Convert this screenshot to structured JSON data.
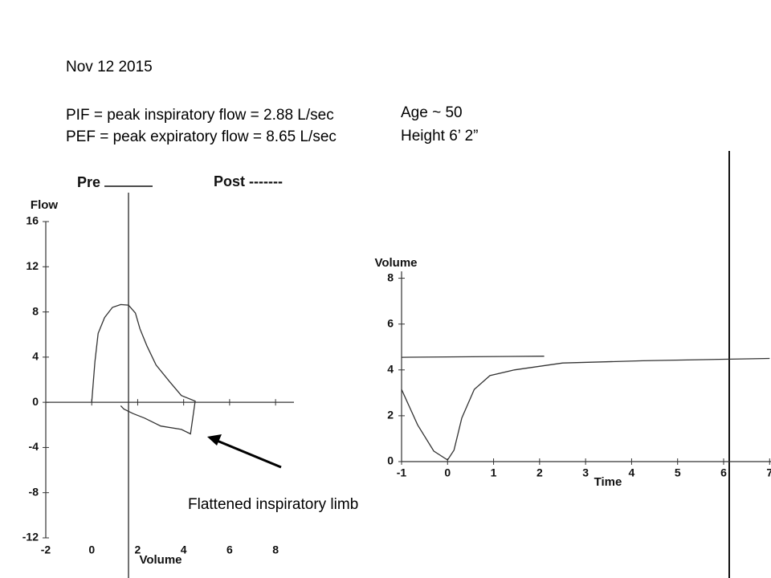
{
  "slide": {
    "date": "Nov 12 2015",
    "lines": [
      "PIF = peak inspiratory flow = 2.88 L/sec",
      "PEF = peak expiratory flow = 8.65 L/sec"
    ],
    "patient": [
      "Age ~ 50",
      "Height 6’ 2”"
    ]
  },
  "chart_data": [
    {
      "type": "line",
      "xlabel": "Volume",
      "ylabel": "Flow",
      "xlim": [
        -2,
        8.8
      ],
      "ylim": [
        -12,
        16
      ],
      "xticks": [
        -2,
        0,
        2,
        4,
        6,
        8
      ],
      "yticks": [
        16,
        12,
        8,
        4,
        0,
        -4,
        -8,
        -12
      ],
      "series": [
        {
          "name": "Pre",
          "color": "#333333",
          "x": [
            0,
            0.14,
            0.28,
            0.56,
            0.9,
            1.26,
            1.6,
            1.9,
            2.1,
            2.4,
            2.8,
            3.4,
            3.9,
            4.5,
            4.3,
            3.9,
            3.0,
            2.3,
            1.8,
            1.4,
            1.26
          ],
          "values": [
            0,
            3.6,
            6.1,
            7.5,
            8.4,
            8.65,
            8.6,
            7.9,
            6.5,
            5.0,
            3.3,
            1.8,
            0.6,
            0.1,
            -2.8,
            -2.4,
            -2.1,
            -1.4,
            -1.0,
            -0.6,
            -0.3
          ]
        }
      ],
      "legend_note": "Post -------",
      "annotation": "Flattened inspiratory limb"
    },
    {
      "type": "line",
      "xlabel": "Time",
      "ylabel": "Volume",
      "xlim": [
        -1,
        7.03
      ],
      "ylim": [
        0,
        8.3
      ],
      "xticks": [
        -1,
        0,
        1,
        2,
        3,
        4,
        5,
        6,
        7
      ],
      "yticks": [
        8,
        6,
        4,
        2,
        0
      ],
      "series": [
        {
          "color": "#333333",
          "x": [
            -1,
            -0.65,
            -0.3,
            0,
            0.14,
            0.31,
            0.58,
            0.92,
            1.45,
            2.5,
            4.24,
            7.0
          ],
          "values": [
            3.15,
            1.6,
            0.46,
            0.07,
            0.5,
            1.9,
            3.15,
            3.75,
            4.0,
            4.3,
            4.4,
            4.5
          ]
        },
        {
          "color": "#333333",
          "x": [
            -1,
            2.1
          ],
          "values": [
            4.55,
            4.6
          ]
        }
      ]
    }
  ]
}
